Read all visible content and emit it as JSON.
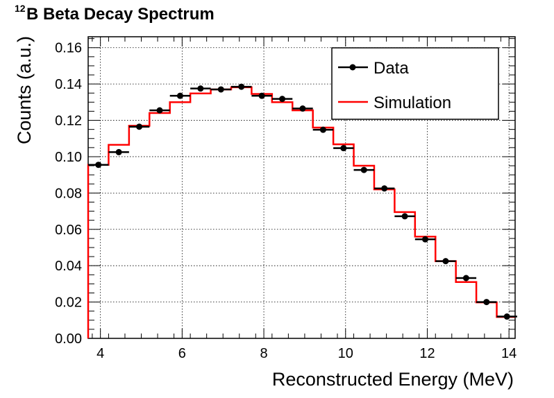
{
  "chart_data": {
    "type": "line",
    "title": {
      "superscript": "12",
      "text": "B Beta Decay Spectrum"
    },
    "xlabel": "Reconstructed Energy (MeV)",
    "ylabel": "Counts (a.u.)",
    "xlim": [
      3.7,
      14.15
    ],
    "ylim": [
      0,
      0.166
    ],
    "xticks": [
      4,
      6,
      8,
      10,
      12,
      14
    ],
    "yticks": [
      0.0,
      0.02,
      0.04,
      0.06,
      0.08,
      0.1,
      0.12,
      0.14,
      0.16
    ],
    "ytick_labels": [
      "0.00",
      "0.02",
      "0.04",
      "0.06",
      "0.08",
      "0.10",
      "0.12",
      "0.14",
      "0.16"
    ],
    "grid": true,
    "legend_position": "top-right",
    "series": [
      {
        "name": "Data",
        "kind": "points-with-xerr",
        "color": "#000000",
        "x": [
          3.95,
          4.45,
          4.95,
          5.45,
          5.95,
          6.45,
          6.95,
          7.45,
          7.95,
          8.45,
          8.95,
          9.45,
          9.95,
          10.45,
          10.95,
          11.45,
          11.95,
          12.45,
          12.95,
          13.45,
          13.95
        ],
        "y": [
          0.0955,
          0.1025,
          0.1165,
          0.1255,
          0.1335,
          0.1375,
          0.137,
          0.1385,
          0.1335,
          0.1318,
          0.1265,
          0.1148,
          0.1047,
          0.0927,
          0.0825,
          0.0672,
          0.0545,
          0.0425,
          0.0332,
          0.02,
          0.012
        ],
        "xerr": 0.25
      },
      {
        "name": "Simulation",
        "kind": "step",
        "color": "#ff0000",
        "edges": [
          3.7,
          4.2,
          4.7,
          5.2,
          5.7,
          6.2,
          6.7,
          7.2,
          7.7,
          8.2,
          8.7,
          9.2,
          9.7,
          10.2,
          10.7,
          11.2,
          11.7,
          12.2,
          12.7,
          13.2,
          13.7,
          14.15
        ],
        "values": [
          0.0955,
          0.1065,
          0.117,
          0.124,
          0.13,
          0.1348,
          0.137,
          0.1382,
          0.1345,
          0.13,
          0.1255,
          0.116,
          0.1068,
          0.095,
          0.082,
          0.0695,
          0.056,
          0.0425,
          0.031,
          0.0198,
          0.0118
        ]
      }
    ]
  }
}
